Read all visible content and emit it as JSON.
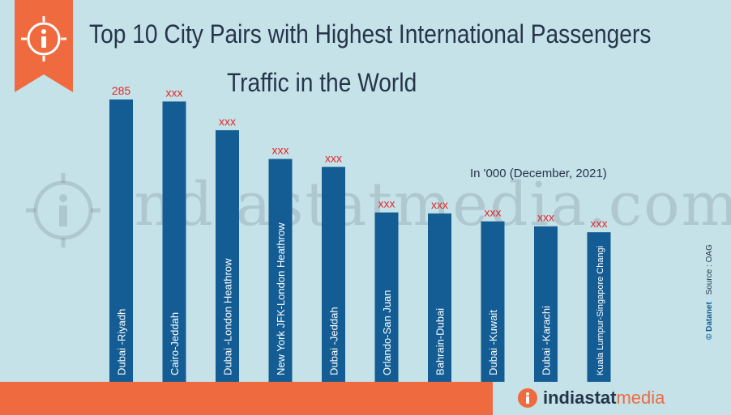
{
  "header": {
    "title_line1": "Top 10 City Pairs with Highest International Passengers",
    "title_line2": "Traffic in the World",
    "unit_note": "In '000 (December, 2021)"
  },
  "watermark": {
    "text": "indiastatmedia.com"
  },
  "footer": {
    "brand_part1": "indiastat",
    "brand_part2": "media",
    "source_note": "Source : OAG",
    "datanet": "© Datanet"
  },
  "colors": {
    "background": "#c5e2e8",
    "bar": "#135d94",
    "accent": "#ef6a3f",
    "value_label": "#e0292b",
    "text": "#26354a"
  },
  "chart_data": {
    "type": "bar",
    "title": "Top 10 City Pairs with Highest International Passengers Traffic in the World",
    "ylabel": "",
    "xlabel": "",
    "ylim": [
      0,
      300
    ],
    "grid": false,
    "categories": [
      "Dubai -Riyadh",
      "Cairo-Jeddah",
      "Dubai -London Heathrow",
      "New York JFK-London Heathrow",
      "Dubai -Jeddah",
      "Orlando-San Juan",
      "Bahrain-Dubai",
      "Dubai -Kuwait",
      "Dubai -Karachi",
      "Kuala Lumpur-Singapore Changi"
    ],
    "values": [
      285,
      283,
      254,
      225,
      217,
      171,
      170,
      162,
      157,
      151
    ],
    "value_labels": [
      "285",
      "xxx",
      "xxx",
      "xxx",
      "xxx",
      "xxx",
      "xxx",
      "xxx",
      "xxx",
      "xxx"
    ]
  }
}
